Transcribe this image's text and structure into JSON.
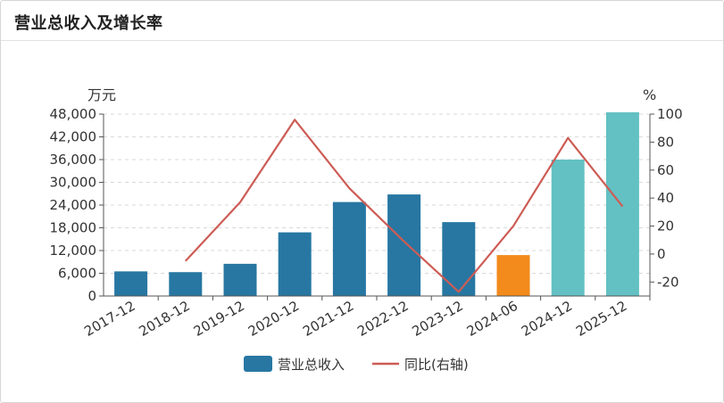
{
  "panel": {
    "title": "营业总收入及增长率"
  },
  "chart_data": {
    "type": "bar+line",
    "categories": [
      "2017-12",
      "2018-12",
      "2019-12",
      "2020-12",
      "2021-12",
      "2022-12",
      "2023-12",
      "2024-06",
      "2024-12",
      "2025-12"
    ],
    "series": [
      {
        "name": "营业总收入",
        "type": "bar",
        "axis": "left",
        "values": [
          6500,
          6300,
          8500,
          16800,
          24800,
          26800,
          19500,
          10800,
          36000,
          48500
        ],
        "bar_colors": [
          "#2777a2",
          "#2777a2",
          "#2777a2",
          "#2777a2",
          "#2777a2",
          "#2777a2",
          "#2777a2",
          "#f28a1c",
          "#63c0c3",
          "#63c0c3"
        ]
      },
      {
        "name": "同比(右轴)",
        "type": "line",
        "axis": "right",
        "color": "#cd5c55",
        "values": [
          null,
          -5,
          37,
          96,
          47,
          9,
          -27,
          20,
          83,
          34
        ]
      }
    ],
    "y_left": {
      "unit": "万元",
      "range": [
        0,
        48000
      ],
      "ticks": [
        0,
        6000,
        12000,
        18000,
        24000,
        30000,
        36000,
        42000,
        48000
      ],
      "tick_labels": [
        "0",
        "6,000",
        "12,000",
        "18,000",
        "24,000",
        "30,000",
        "36,000",
        "42,000",
        "48,000"
      ]
    },
    "y_right": {
      "unit": "%",
      "range": [
        -30,
        100
      ],
      "ticks": [
        -20,
        0,
        20,
        40,
        60,
        80,
        100
      ],
      "tick_labels": [
        "-20",
        "0",
        "20",
        "40",
        "60",
        "80",
        "100"
      ]
    },
    "grid": true,
    "legend_position": "bottom-center"
  }
}
